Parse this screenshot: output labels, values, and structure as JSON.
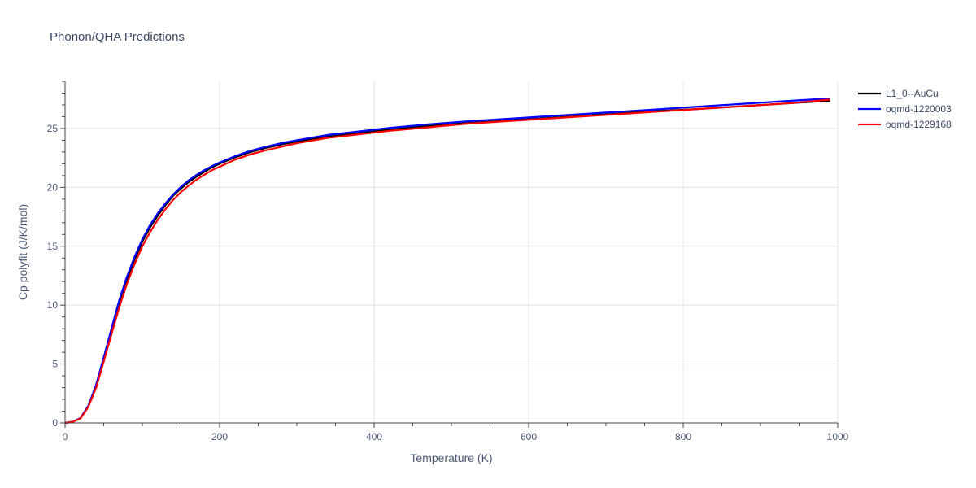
{
  "chart_data": {
    "type": "line",
    "title": "Phonon/QHA Predictions",
    "xlabel": "Temperature (K)",
    "ylabel": "Cp polyfit (J/K/mol)",
    "xlim": [
      0,
      1000
    ],
    "ylim": [
      0,
      29
    ],
    "x_ticks": [
      0,
      200,
      400,
      600,
      800,
      1000
    ],
    "y_ticks": [
      0,
      5,
      10,
      15,
      20,
      25
    ],
    "x_minor_step": 50,
    "y_minor_step": 1,
    "grid": true,
    "legend_position": "top-right",
    "x": [
      0,
      10,
      20,
      30,
      40,
      50,
      60,
      70,
      80,
      90,
      100,
      110,
      120,
      130,
      140,
      150,
      160,
      170,
      180,
      190,
      200,
      220,
      240,
      260,
      280,
      300,
      340,
      380,
      420,
      470,
      520,
      580,
      640,
      700,
      760,
      820,
      880,
      940,
      990
    ],
    "series": [
      {
        "name": "L1_0--AuCu",
        "color": "#000000",
        "values": [
          0,
          0.1,
          0.4,
          1.4,
          3.1,
          5.4,
          7.8,
          10.2,
          12.2,
          13.9,
          15.4,
          16.6,
          17.6,
          18.5,
          19.3,
          19.9,
          20.45,
          20.9,
          21.3,
          21.7,
          22.0,
          22.55,
          23.0,
          23.35,
          23.65,
          23.9,
          24.3,
          24.6,
          24.9,
          25.2,
          25.45,
          25.7,
          25.95,
          26.2,
          26.45,
          26.65,
          26.9,
          27.15,
          27.35
        ]
      },
      {
        "name": "oqmd-1220003",
        "color": "#0000ff",
        "values": [
          0,
          0.1,
          0.42,
          1.45,
          3.2,
          5.55,
          8.0,
          10.4,
          12.4,
          14.1,
          15.6,
          16.8,
          17.8,
          18.65,
          19.4,
          20.05,
          20.6,
          21.05,
          21.45,
          21.8,
          22.1,
          22.65,
          23.1,
          23.45,
          23.75,
          24.0,
          24.45,
          24.75,
          25.05,
          25.35,
          25.6,
          25.85,
          26.1,
          26.35,
          26.6,
          26.85,
          27.1,
          27.35,
          27.55
        ]
      },
      {
        "name": "oqmd-1229168",
        "color": "#ff0000",
        "values": [
          0,
          0.09,
          0.38,
          1.35,
          2.95,
          5.2,
          7.5,
          9.8,
          11.8,
          13.5,
          15.0,
          16.2,
          17.25,
          18.15,
          18.95,
          19.6,
          20.15,
          20.65,
          21.05,
          21.45,
          21.75,
          22.35,
          22.8,
          23.15,
          23.45,
          23.75,
          24.2,
          24.5,
          24.8,
          25.1,
          25.4,
          25.65,
          25.9,
          26.15,
          26.4,
          26.65,
          26.9,
          27.15,
          27.45
        ]
      }
    ]
  }
}
